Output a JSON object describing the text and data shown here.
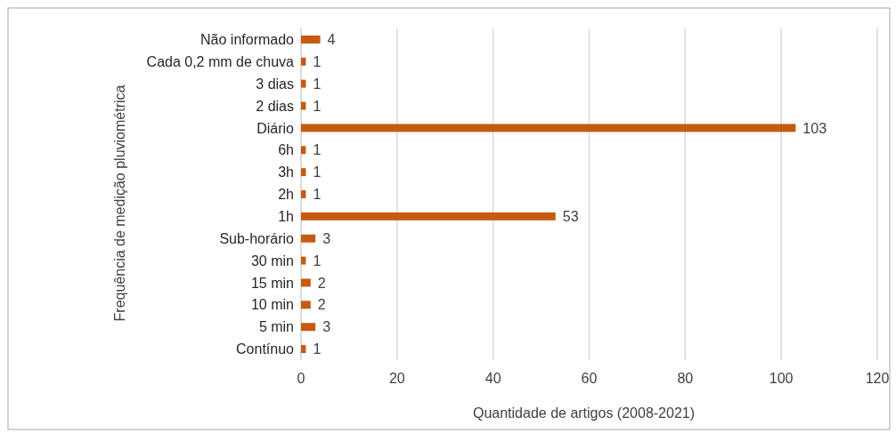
{
  "chart_data": {
    "type": "bar",
    "orientation": "horizontal",
    "categories": [
      "Não informado",
      "Cada 0,2 mm de chuva",
      "3 dias",
      "2 dias",
      "Diário",
      "6h",
      "3h",
      "2h",
      "1h",
      "Sub-horário",
      "30 min",
      "15 min",
      "10 min",
      "5 min",
      "Contínuo"
    ],
    "values": [
      4,
      1,
      1,
      1,
      103,
      1,
      1,
      1,
      53,
      3,
      1,
      2,
      2,
      3,
      1
    ],
    "color": "#c55a11",
    "xlim": [
      0,
      120
    ],
    "xticks": [
      0,
      20,
      40,
      60,
      80,
      100,
      120
    ],
    "xlabel": "Quantidade de artigos (2008-2021)",
    "ylabel": "Frequência de medição pluviométrica",
    "grid": "x",
    "data_labels": true
  }
}
